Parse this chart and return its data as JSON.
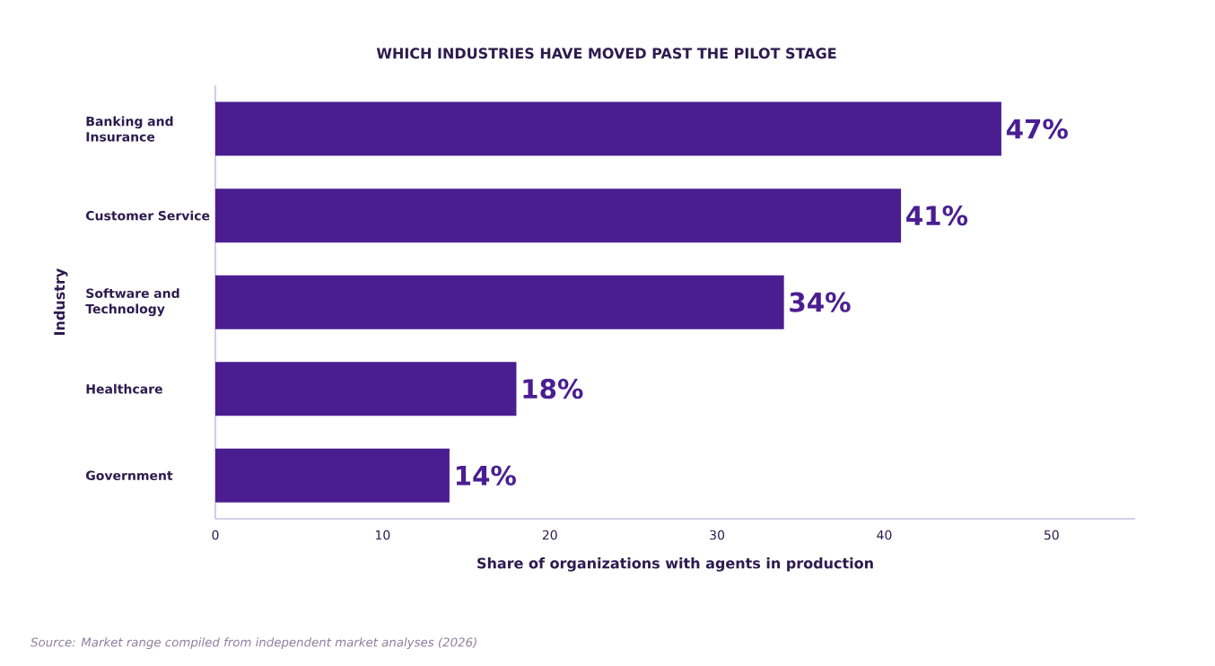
{
  "chart_data": {
    "type": "bar",
    "orientation": "horizontal",
    "title": "WHICH INDUSTRIES HAVE MOVED PAST THE PILOT STAGE",
    "xlabel": "Share of organizations with agents in production",
    "ylabel": "Industry",
    "categories": [
      "Banking and Insurance",
      "Customer Service",
      "Software and Technology",
      "Healthcare",
      "Government"
    ],
    "values": [
      47,
      41,
      34,
      18,
      14
    ],
    "value_labels": [
      "47%",
      "41%",
      "34%",
      "18%",
      "14%"
    ],
    "color": "#4a1e91",
    "xlim": [
      0,
      55
    ],
    "xticks": [
      0,
      10,
      20,
      30,
      40,
      50
    ],
    "annotations": [
      "Source: Market range compiled from independent market analyses (2026)"
    ]
  }
}
